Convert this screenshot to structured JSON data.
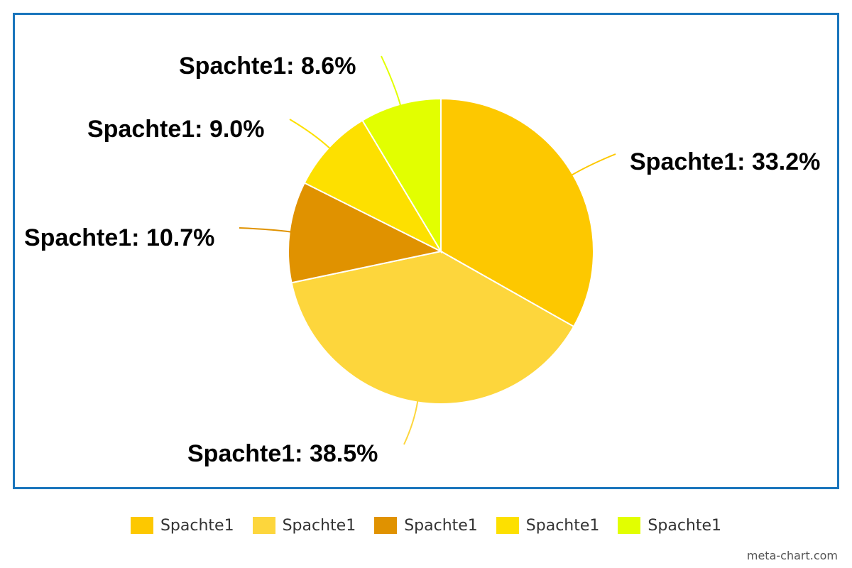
{
  "chart_data": {
    "type": "pie",
    "start_angle_deg": 0,
    "direction": "clockwise",
    "slices": [
      {
        "label": "Spachte1",
        "value": 33.2,
        "display": "Spachte1: 33.2%",
        "color": "#fdc800"
      },
      {
        "label": "Spachte1",
        "value": 38.5,
        "display": "Spachte1: 38.5%",
        "color": "#fdd63c"
      },
      {
        "label": "Spachte1",
        "value": 10.7,
        "display": "Spachte1: 10.7%",
        "color": "#e09200"
      },
      {
        "label": "Spachte1",
        "value": 9.0,
        "display": "Spachte1: 9.0%",
        "color": "#fde000"
      },
      {
        "label": "Spachte1",
        "value": 8.6,
        "display": "Spachte1: 8.6%",
        "color": "#e2ff00"
      }
    ],
    "legend": {
      "position": "bottom",
      "entries": [
        "Spachte1",
        "Spachte1",
        "Spachte1",
        "Spachte1",
        "Spachte1"
      ]
    },
    "frame_color": "#1a75bc"
  },
  "credit": "meta-chart.com"
}
